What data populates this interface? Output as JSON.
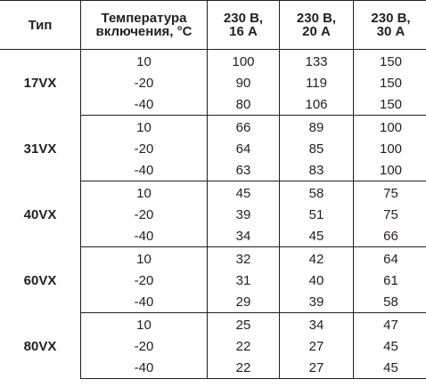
{
  "header": {
    "type": "Тип",
    "temperature_line1": "Температура",
    "temperature_line2": "включения, °C",
    "col1_line1": "230 В,",
    "col1_line2": "16 А",
    "col2_line1": "230 В,",
    "col2_line2": "20 А",
    "col3_line1": "230 В,",
    "col3_line2": "30 А"
  },
  "groups": [
    {
      "type": "17VX",
      "rows": [
        {
          "temp": "10",
          "v1": "100",
          "v2": "133",
          "v3": "150"
        },
        {
          "temp": "-20",
          "v1": "90",
          "v2": "119",
          "v3": "150"
        },
        {
          "temp": "-40",
          "v1": "80",
          "v2": "106",
          "v3": "150"
        }
      ]
    },
    {
      "type": "31VX",
      "rows": [
        {
          "temp": "10",
          "v1": "66",
          "v2": "89",
          "v3": "100"
        },
        {
          "temp": "-20",
          "v1": "64",
          "v2": "85",
          "v3": "100"
        },
        {
          "temp": "-40",
          "v1": "63",
          "v2": "83",
          "v3": "100"
        }
      ]
    },
    {
      "type": "40VX",
      "rows": [
        {
          "temp": "10",
          "v1": "45",
          "v2": "58",
          "v3": "75"
        },
        {
          "temp": "-20",
          "v1": "39",
          "v2": "51",
          "v3": "75"
        },
        {
          "temp": "-40",
          "v1": "34",
          "v2": "45",
          "v3": "66"
        }
      ]
    },
    {
      "type": "60VX",
      "rows": [
        {
          "temp": "10",
          "v1": "32",
          "v2": "42",
          "v3": "64"
        },
        {
          "temp": "-20",
          "v1": "31",
          "v2": "40",
          "v3": "61"
        },
        {
          "temp": "-40",
          "v1": "29",
          "v2": "39",
          "v3": "58"
        }
      ]
    },
    {
      "type": "80VX",
      "rows": [
        {
          "temp": "10",
          "v1": "25",
          "v2": "34",
          "v3": "47"
        },
        {
          "temp": "-20",
          "v1": "22",
          "v2": "27",
          "v3": "45"
        },
        {
          "temp": "-40",
          "v1": "22",
          "v2": "27",
          "v3": "45"
        }
      ]
    }
  ]
}
